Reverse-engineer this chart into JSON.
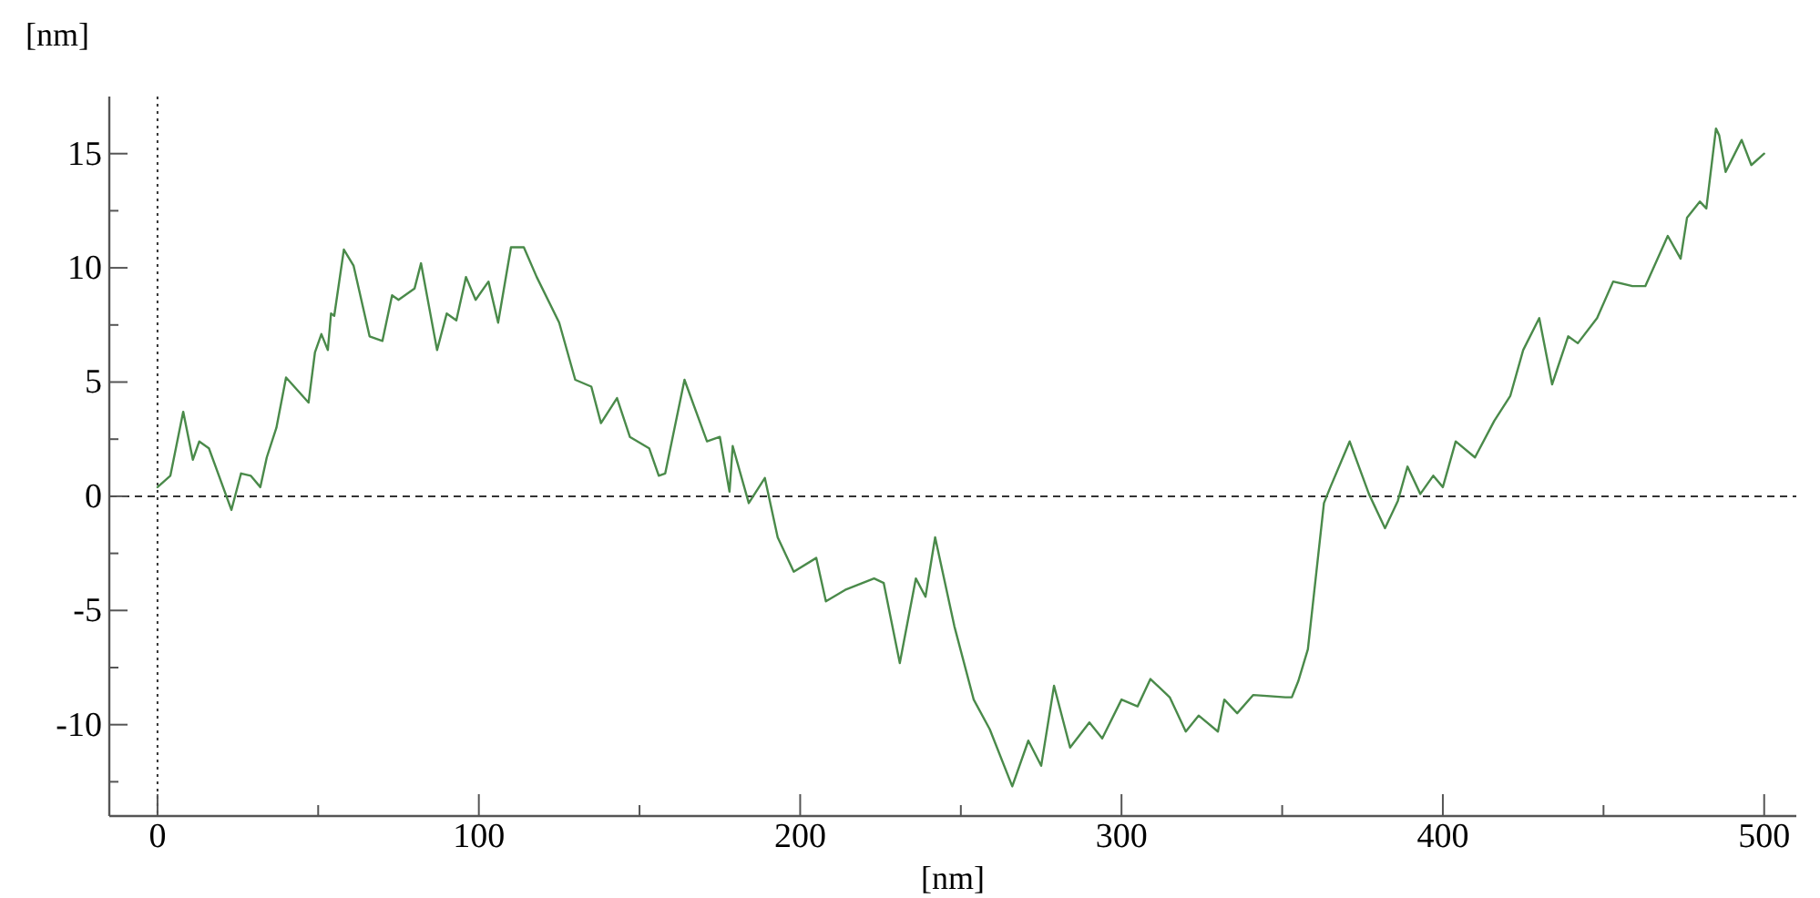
{
  "chart_data": {
    "type": "line",
    "xlabel": "[nm]",
    "ylabel": "[nm]",
    "xlim": [
      -15,
      510
    ],
    "ylim": [
      -14,
      17.5
    ],
    "xticks": [
      0,
      {
        "value": 50,
        "label": null
      },
      100,
      {
        "value": 150,
        "label": null
      },
      200,
      {
        "value": 250,
        "label": null
      },
      300,
      {
        "value": 350,
        "label": null
      },
      400,
      {
        "value": 450,
        "label": null
      },
      500
    ],
    "yticks": [
      {
        "value": -12.5,
        "label": null
      },
      -10,
      {
        "value": -7.5,
        "label": null
      },
      -5,
      {
        "value": -2.5,
        "label": null
      },
      0,
      {
        "value": 2.5,
        "label": null
      },
      5,
      {
        "value": 7.5,
        "label": null
      },
      10,
      {
        "value": 12.5,
        "label": null
      },
      15
    ],
    "grid": false,
    "marker": "none",
    "line_style": "solid",
    "ref_lines": [
      {
        "axis": "x",
        "value": 0,
        "line_style": "dotted",
        "color": "#333333"
      },
      {
        "axis": "y",
        "value": 0,
        "line_style": "dashed",
        "color": "#333333"
      }
    ],
    "series": [
      {
        "color": "#4a8a4a",
        "x": [
          0,
          4,
          8,
          11,
          13,
          16,
          23,
          26,
          29,
          32,
          34,
          37,
          40,
          47,
          49,
          51,
          53,
          54,
          55,
          58,
          61,
          66,
          70,
          73,
          75,
          80,
          82,
          87,
          90,
          93,
          96,
          99,
          103,
          106,
          110,
          114,
          118,
          125,
          130,
          135,
          138,
          143,
          147,
          153,
          156,
          158,
          164,
          171,
          175,
          178,
          179,
          184,
          189,
          193,
          198,
          205,
          208,
          214,
          223,
          226,
          231,
          236,
          239,
          242,
          248,
          254,
          259,
          266,
          271,
          275,
          279,
          284,
          290,
          294,
          300,
          305,
          309,
          315,
          320,
          324,
          330,
          332,
          336,
          341,
          351,
          353,
          355,
          358,
          363,
          365,
          371,
          377,
          382,
          386,
          389,
          393,
          397,
          400,
          404,
          410,
          416,
          421,
          425,
          430,
          434,
          439,
          442,
          448,
          453,
          459,
          463,
          470,
          474,
          476,
          480,
          482,
          485,
          486,
          488,
          493,
          496,
          500
        ],
        "values": [
          0.4,
          0.9,
          3.7,
          1.6,
          2.4,
          2.1,
          -0.6,
          1.0,
          0.9,
          0.4,
          1.7,
          3.0,
          5.2,
          4.1,
          6.3,
          7.1,
          6.4,
          8.0,
          7.9,
          10.8,
          10.1,
          7.0,
          6.8,
          8.8,
          8.6,
          9.1,
          10.2,
          6.4,
          8.0,
          7.7,
          9.6,
          8.6,
          9.4,
          7.6,
          10.9,
          10.9,
          9.6,
          7.6,
          5.1,
          4.8,
          3.2,
          4.3,
          2.6,
          2.1,
          0.9,
          1.0,
          5.1,
          2.4,
          2.6,
          0.2,
          2.2,
          -0.3,
          0.8,
          -1.8,
          -3.3,
          -2.7,
          -4.6,
          -4.1,
          -3.6,
          -3.8,
          -7.3,
          -3.6,
          -4.4,
          -1.8,
          -5.7,
          -8.9,
          -10.2,
          -12.7,
          -10.7,
          -11.8,
          -8.3,
          -11.0,
          -9.9,
          -10.6,
          -8.9,
          -9.2,
          -8.0,
          -8.8,
          -10.3,
          -9.6,
          -10.3,
          -8.9,
          -9.5,
          -8.7,
          -8.8,
          -8.8,
          -8.1,
          -6.7,
          -0.3,
          0.4,
          2.4,
          0.1,
          -1.4,
          -0.2,
          1.3,
          0.1,
          0.9,
          0.4,
          2.4,
          1.7,
          3.3,
          4.4,
          6.4,
          7.8,
          4.9,
          7.0,
          6.7,
          7.8,
          9.4,
          9.2,
          9.2,
          11.4,
          10.4,
          12.2,
          12.9,
          12.6,
          16.1,
          15.8,
          14.2,
          15.6,
          14.5,
          15.0
        ]
      }
    ]
  }
}
